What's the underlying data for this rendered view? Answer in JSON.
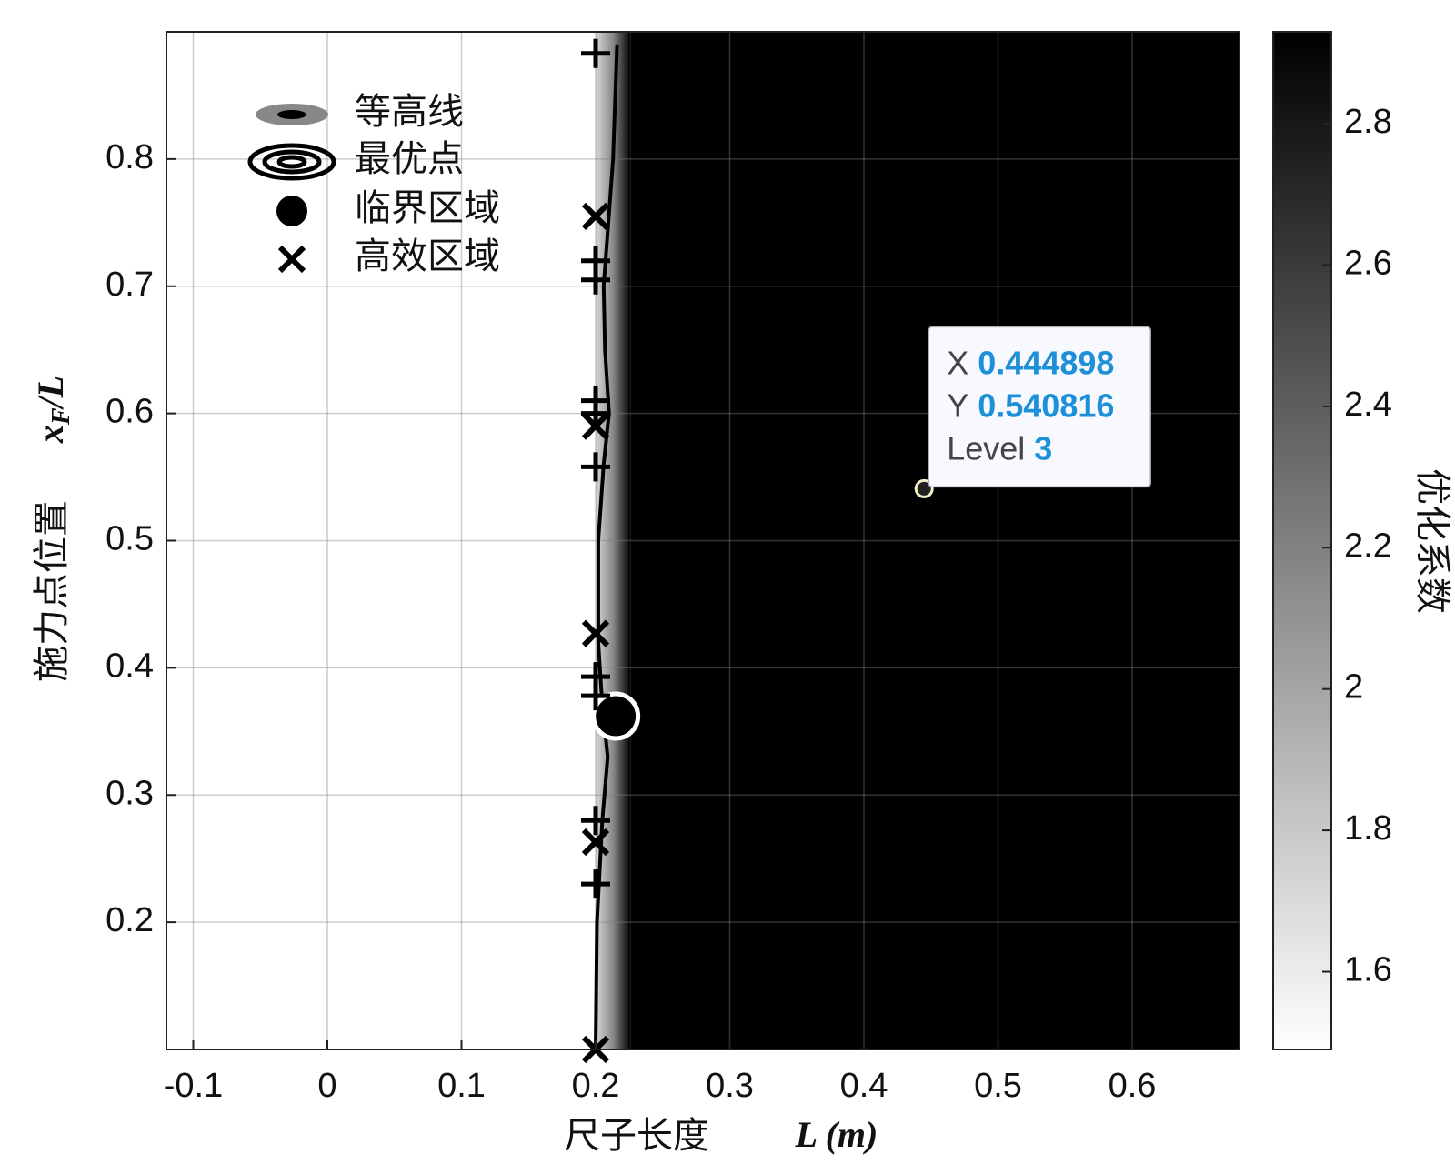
{
  "chart_data": {
    "type": "contour",
    "xlabel": "尺子长度",
    "xlabel_unit": "L (m)",
    "ylabel": "施力点位置",
    "ylabel_symbol": {
      "base": "x",
      "sub": "F",
      "rest": "/L"
    },
    "colorbar_label": "优化系数",
    "colormap": "gray",
    "xlim": [
      -0.12,
      0.68
    ],
    "xticks": [
      -0.1,
      0,
      0.1,
      0.2,
      0.3,
      0.4,
      0.5,
      0.6
    ],
    "ylim": [
      0.1,
      0.9
    ],
    "yticks": [
      0.2,
      0.3,
      0.4,
      0.5,
      0.6,
      0.7,
      0.8
    ],
    "clim": [
      1.49,
      2.93
    ],
    "cticks": [
      1.6,
      1.8,
      2,
      2.2,
      2.4,
      2.6,
      2.8
    ],
    "grid": true,
    "fill_band_x": [
      0.2,
      0.226
    ],
    "series": [
      {
        "name": "等高线",
        "kind": "contour",
        "color": "#000000",
        "x": [
          0.2,
          0.201,
          0.205,
          0.209,
          0.205,
          0.202,
          0.202,
          0.206,
          0.21,
          0.207,
          0.206,
          0.213,
          0.216
        ],
        "y": [
          0.1,
          0.2,
          0.28,
          0.33,
          0.37,
          0.42,
          0.5,
          0.56,
          0.6,
          0.65,
          0.7,
          0.8,
          0.89
        ]
      },
      {
        "name": "最优点",
        "kind": "optimum",
        "color": "#ffffff",
        "x": [
          0.215
        ],
        "y": [
          0.362
        ]
      },
      {
        "name": "临界区域",
        "kind": "critical",
        "color": "#000000",
        "x": [
          0.215
        ],
        "y": [
          0.362
        ]
      },
      {
        "name": "高效区域",
        "kind": "cross",
        "color": "#000000",
        "x": [
          0.2,
          0.2,
          0.2,
          0.2,
          0.2
        ],
        "y": [
          0.755,
          0.59,
          0.427,
          0.263,
          0.1
        ]
      },
      {
        "kind": "plus",
        "color": "#000000",
        "x": [
          0.2,
          0.2,
          0.2,
          0.2,
          0.2,
          0.2,
          0.2,
          0.2,
          0.2,
          0.2
        ],
        "y": [
          0.883,
          0.72,
          0.705,
          0.61,
          0.6,
          0.558,
          0.393,
          0.378,
          0.28,
          0.23
        ]
      }
    ],
    "datatip": {
      "x_label": "X",
      "x": 0.444898,
      "y_label": "Y",
      "y": 0.540816,
      "level_label": "Level",
      "level": 3
    }
  }
}
